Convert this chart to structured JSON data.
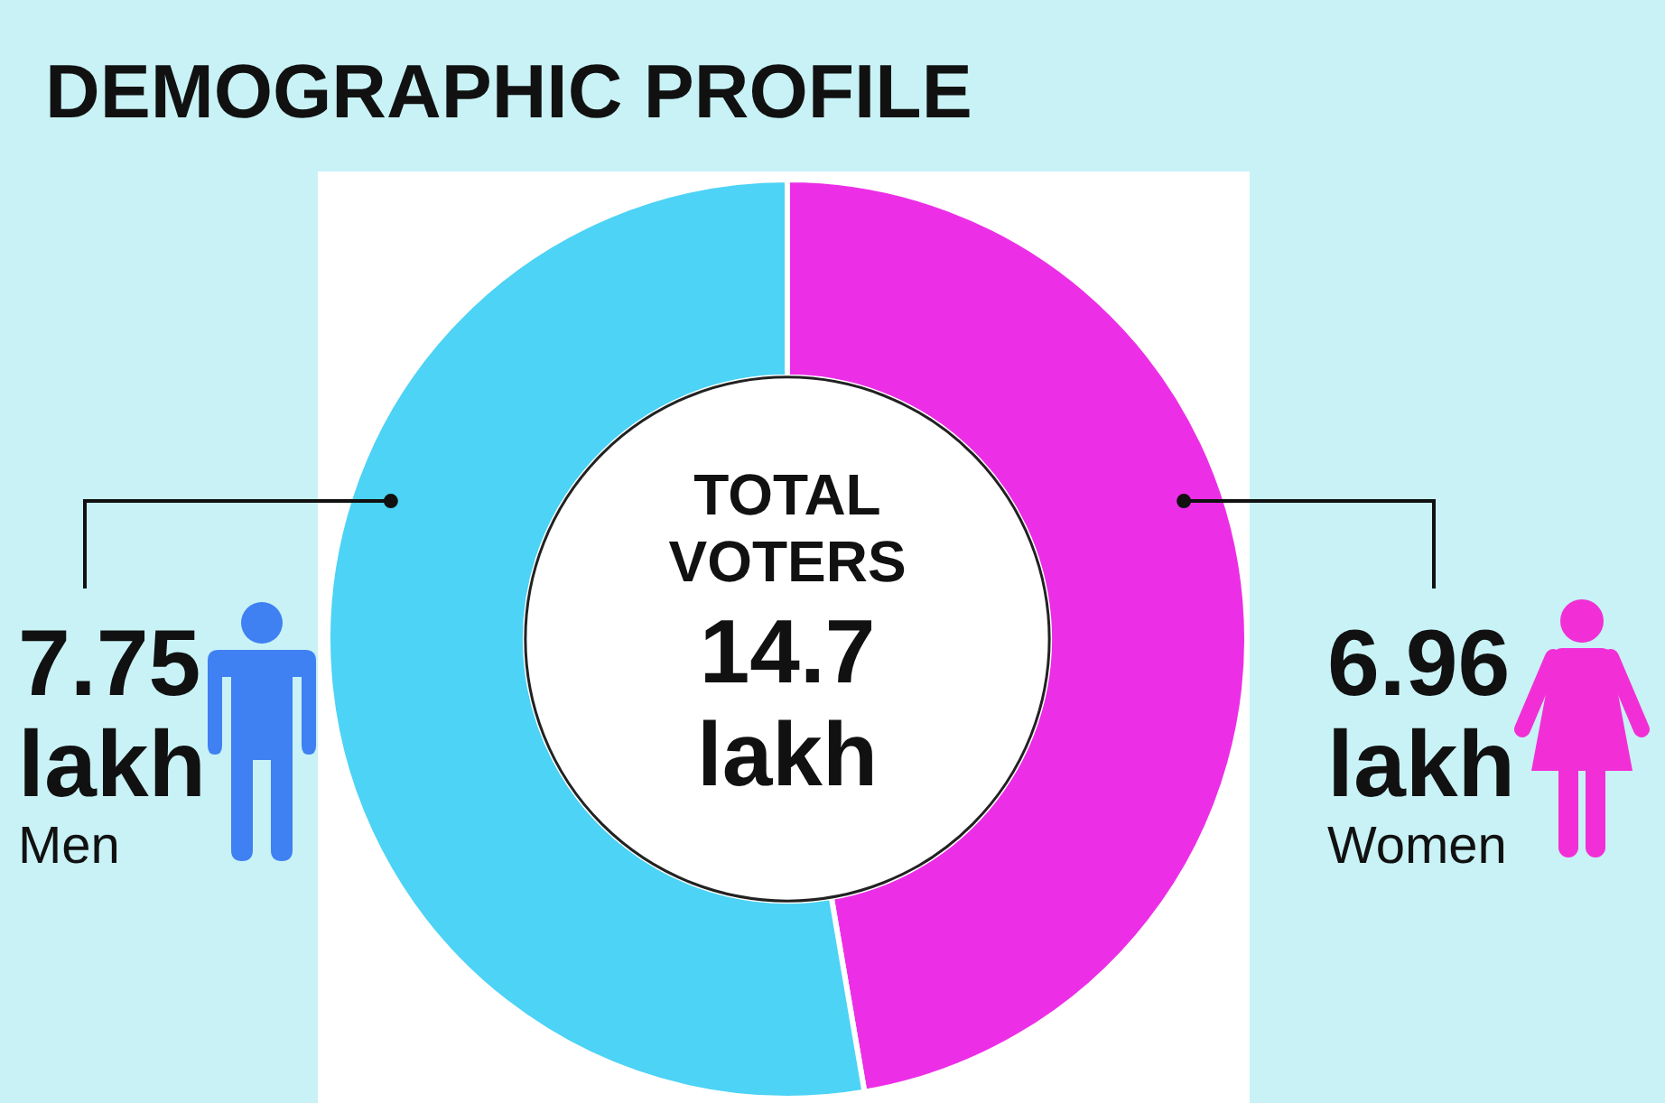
{
  "chart_data": {
    "type": "donut",
    "title": "DEMOGRAPHIC PROFILE",
    "categories": [
      "Women",
      "Men"
    ],
    "values": [
      6.96,
      7.75
    ],
    "colors": [
      "#ec2fe6",
      "#4cd3f5"
    ],
    "value_labels": [
      "6.96 lakh",
      "7.75 lakh"
    ],
    "annotations": [
      "TOTAL VOTERS",
      "14.7 lakh"
    ]
  }
}
